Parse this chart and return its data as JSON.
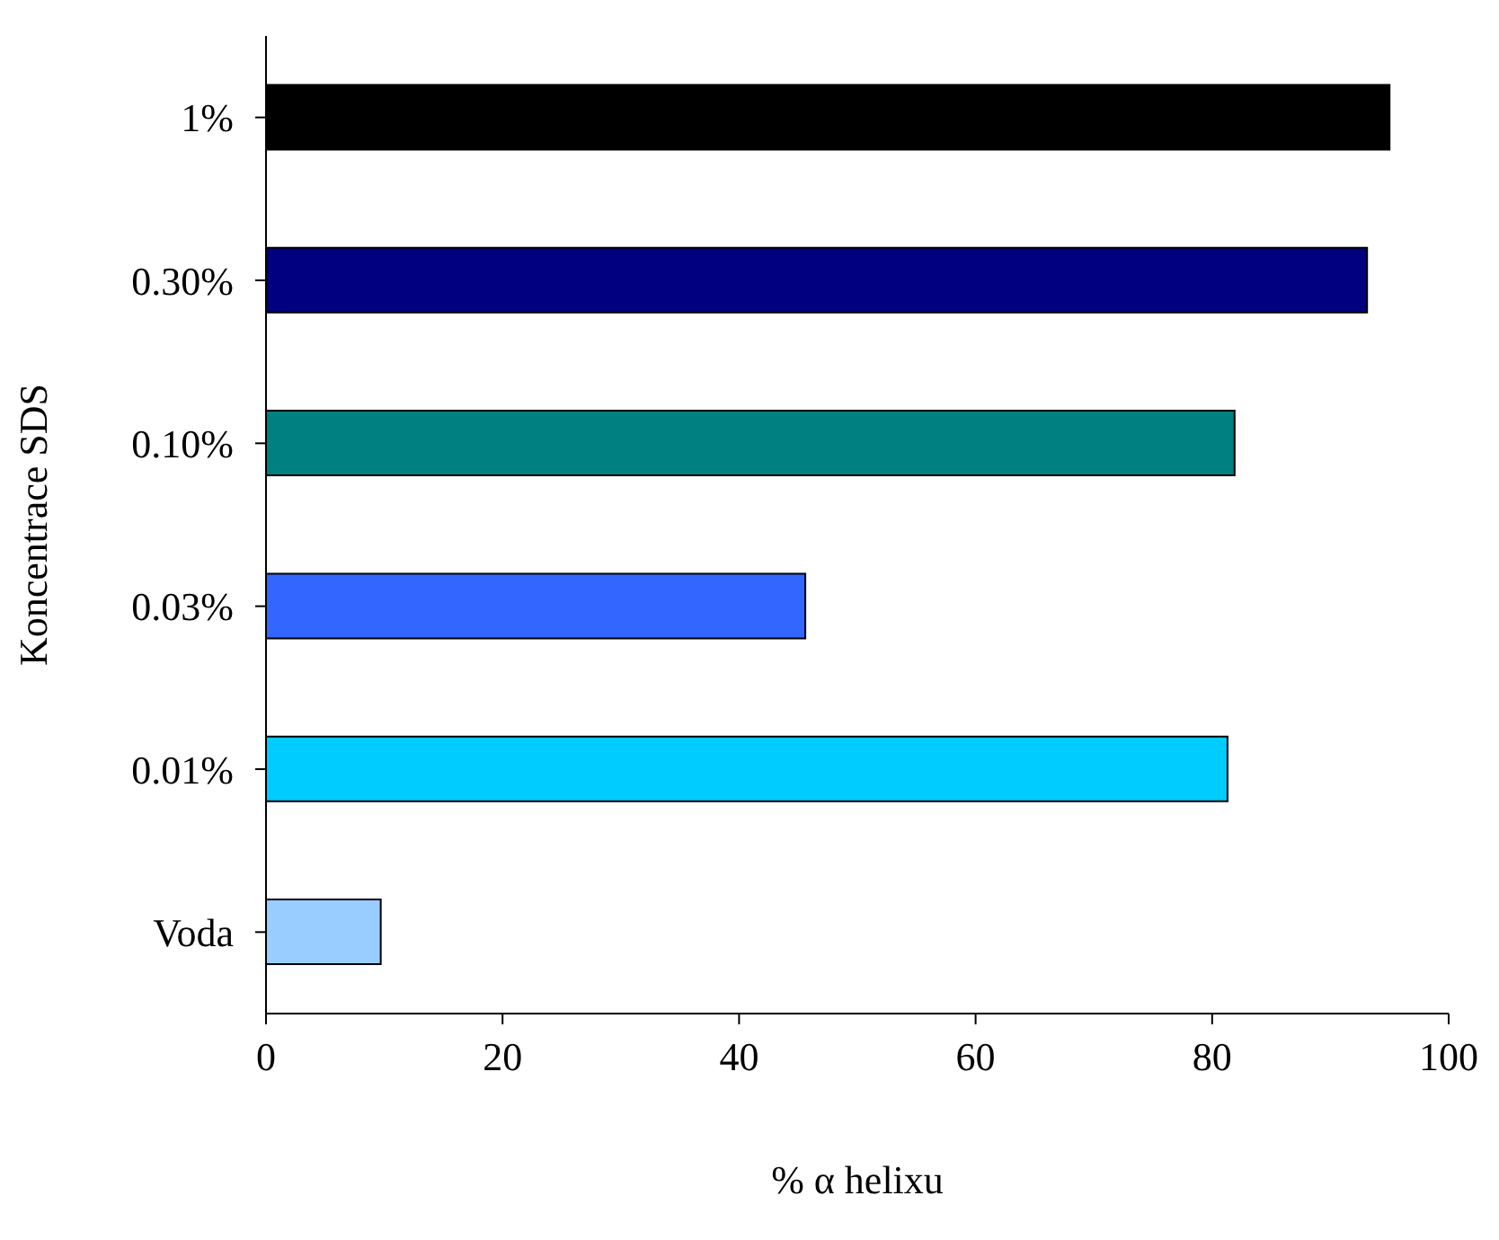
{
  "chart_data": {
    "type": "bar",
    "orientation": "horizontal",
    "xlabel": "% α helixu",
    "ylabel": "Koncentrace SDS",
    "categories": [
      "1%",
      "0.30%",
      "0.10%",
      "0.03%",
      "0.01%",
      "Voda"
    ],
    "values": [
      95,
      93.1,
      81.9,
      45.6,
      81.3,
      9.7
    ],
    "colors": [
      "#000000",
      "#000080",
      "#008080",
      "#3366ff",
      "#00ccff",
      "#99ccff"
    ],
    "xlim": [
      0,
      100
    ],
    "xticks": [
      0,
      20,
      40,
      60,
      80,
      100
    ],
    "grid": false,
    "legend": false
  }
}
